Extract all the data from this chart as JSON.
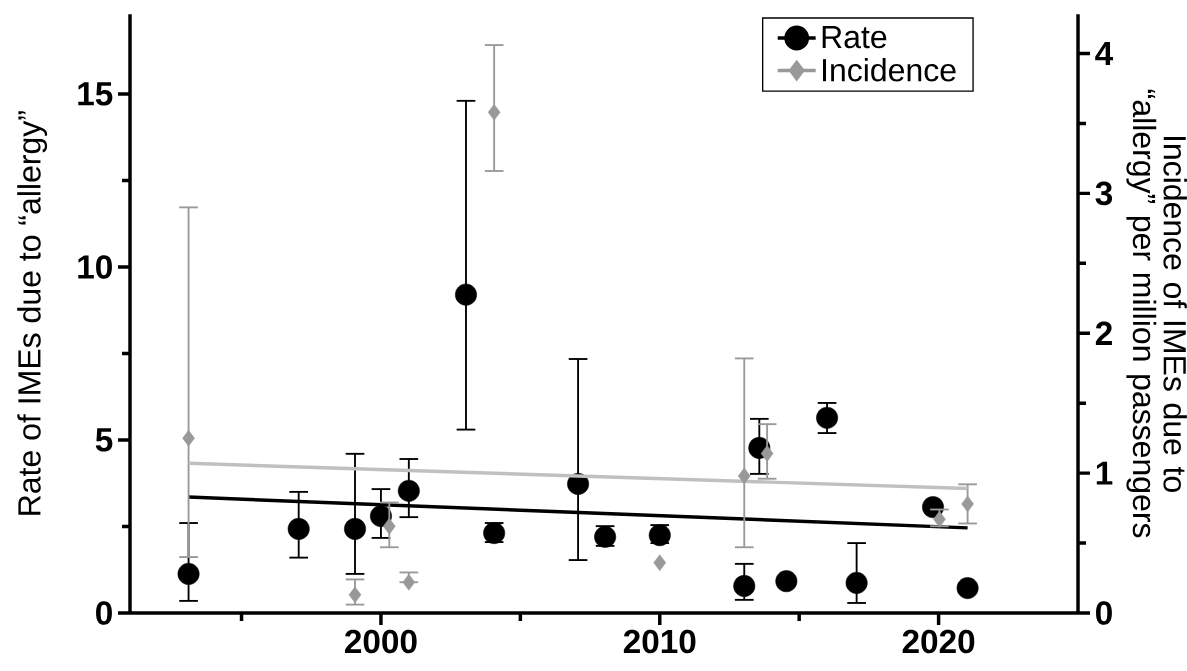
{
  "chart_data": {
    "type": "scatter",
    "ylabel": "Rate of IMEs due to “allergy”",
    "y2label": "Incidence of IMEs due to “allergy” per million passengers",
    "xlim": [
      1991,
      2025
    ],
    "xticks": [
      {
        "value": 1995,
        "label": null
      },
      2000,
      {
        "value": 2005,
        "label": null
      },
      2010,
      {
        "value": 2015,
        "label": null
      },
      2020
    ],
    "ylim": [
      0,
      17.3
    ],
    "yticks": [
      0,
      {
        "value": 2.5,
        "label": null
      },
      5,
      {
        "value": 7.5,
        "label": null
      },
      10,
      {
        "value": 12.5,
        "label": null
      },
      15
    ],
    "y2lim": [
      0,
      4.28
    ],
    "y2ticks": [
      0,
      {
        "value": 0.5,
        "label": null
      },
      1,
      {
        "value": 1.5,
        "label": null
      },
      2,
      {
        "value": 2.5,
        "label": null
      },
      3,
      {
        "value": 3.5,
        "label": null
      },
      4
    ],
    "legend": "top right",
    "series": [
      {
        "name": "Rate",
        "type": "scatter",
        "marker": "circle",
        "color": "#000000",
        "x": [
          1993.1,
          1997.05,
          1999.07,
          2000.0,
          2001.0,
          2003.05,
          2004.06,
          2007.07,
          2008.04,
          2010.0,
          2013.03,
          2013.57,
          2014.54,
          2016.0,
          2017.06,
          2019.8,
          2021.04
        ],
        "values": [
          1.13,
          2.43,
          2.43,
          2.8,
          3.53,
          9.2,
          2.31,
          3.73,
          2.2,
          2.25,
          0.78,
          4.77,
          0.92,
          5.64,
          0.87,
          3.06,
          0.72
        ],
        "errors": [
          [
            0.35,
            2.6
          ],
          [
            1.6,
            3.5
          ],
          [
            1.13,
            4.6
          ],
          [
            2.17,
            3.58
          ],
          [
            2.77,
            4.45
          ],
          [
            5.3,
            14.8
          ],
          [
            2.05,
            2.6
          ],
          [
            1.53,
            7.34
          ],
          [
            1.94,
            2.51
          ],
          [
            2.02,
            2.54
          ],
          [
            0.38,
            1.42
          ],
          [
            4.02,
            5.61
          ],
          null,
          [
            5.2,
            6.07
          ],
          [
            0.29,
            2.02
          ],
          null,
          null
        ]
      },
      {
        "name": "Incidence",
        "type": "scatter",
        "marker": "diamond",
        "axis": "y2",
        "color": "#999999",
        "x": [
          1993.1,
          1999.07,
          2000.3,
          2001.0,
          2004.06,
          2010.0,
          2013.03,
          2013.85,
          2020.03,
          2021.04
        ],
        "values": [
          1.25,
          0.13,
          0.62,
          0.22,
          3.58,
          0.36,
          0.98,
          1.14,
          0.67,
          0.78
        ],
        "errors": [
          [
            0.4,
            2.9
          ],
          [
            0.06,
            0.24
          ],
          [
            0.47,
            0.79
          ],
          [
            0.22,
            0.29
          ],
          [
            3.16,
            4.06
          ],
          null,
          [
            0.47,
            1.82
          ],
          [
            0.96,
            1.35
          ],
          [
            0.62,
            0.74
          ],
          [
            0.64,
            0.92
          ]
        ]
      },
      {
        "type": "line",
        "marker": "none",
        "color": "#000000",
        "x": [
          1993.1,
          2021.04
        ],
        "values": [
          3.35,
          2.46
        ]
      },
      {
        "type": "line",
        "marker": "none",
        "axis": "y2",
        "color": "#c0c0c0",
        "x": [
          1993.1,
          2021.04
        ],
        "values": [
          1.07,
          0.89
        ]
      }
    ]
  }
}
